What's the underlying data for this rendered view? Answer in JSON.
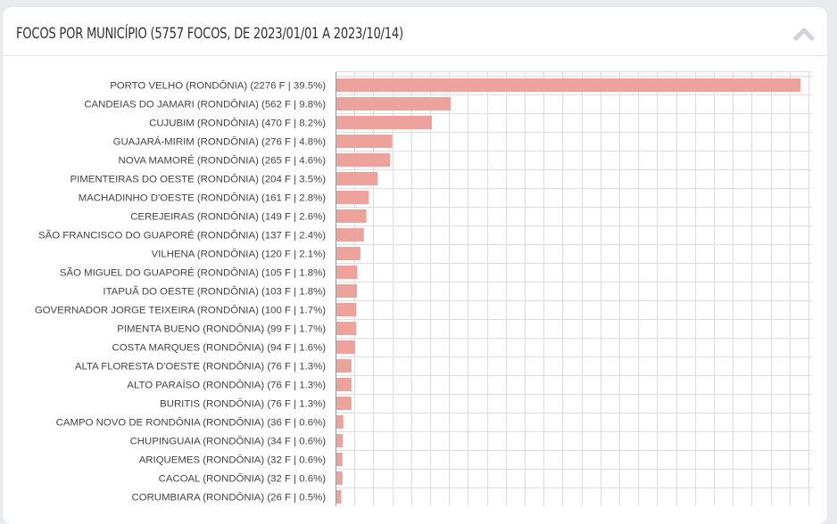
{
  "panel": {
    "title": "FOCOS POR MUNICÍPIO (5757 FOCOS, DE 2023/01/01 A 2023/10/14)",
    "collapse_icon": "chevron-up-icon"
  },
  "colors": {
    "bar": "#eda39c",
    "grid": "#dddddd",
    "axis": "#999999",
    "label": "#444444",
    "title": "#333333",
    "chevron": "#d0d4da"
  },
  "chart_data": {
    "type": "bar",
    "orientation": "horizontal",
    "grid": true,
    "categories": [
      "PORTO VELHO (RONDÔNIA) (2276 F | 39.5%)",
      "CANDEIAS DO JAMARI (RONDÔNIA) (562 F | 9.8%)",
      "CUJUBIM (RONDÔNIA) (470 F | 8.2%)",
      "GUAJARÁ-MIRIM (RONDÔNIA) (276 F | 4.8%)",
      "NOVA MAMORÉ (RONDÔNIA) (265 F | 4.6%)",
      "PIMENTEIRAS DO OESTE (RONDÔNIA) (204 F | 3.5%)",
      "MACHADINHO D'OESTE (RONDÔNIA) (161 F | 2.8%)",
      "CEREJEIRAS (RONDÔNIA) (149 F | 2.6%)",
      "SÃO FRANCISCO DO GUAPORÉ (RONDÔNIA) (137 F | 2.4%)",
      "VILHENA (RONDÔNIA) (120 F | 2.1%)",
      "SÃO MIGUEL DO GUAPORÉ (RONDÔNIA) (105 F | 1.8%)",
      "ITAPUÃ DO OESTE (RONDÔNIA) (103 F | 1.8%)",
      "GOVERNADOR JORGE TEIXEIRA (RONDÔNIA) (100 F | 1.7%)",
      "PIMENTA BUENO (RONDÔNIA) (99 F | 1.7%)",
      "COSTA MARQUES (RONDÔNIA) (94 F | 1.6%)",
      "ALTA FLORESTA D'OESTE (RONDÔNIA) (76 F | 1.3%)",
      "ALTO PARAÍSO (RONDÔNIA) (76 F | 1.3%)",
      "BURITIS (RONDÔNIA) (76 F | 1.3%)",
      "CAMPO NOVO DE RONDÔNIA (RONDÔNIA) (36 F | 0.6%)",
      "CHUPINGUAIA (RONDÔNIA) (34 F | 0.6%)",
      "ARIQUEMES (RONDÔNIA) (32 F | 0.6%)",
      "CACOAL (RONDÔNIA) (32 F | 0.6%)",
      "CORUMBIARA (RONDÔNIA) (26 F | 0.5%)"
    ],
    "values": [
      2276,
      562,
      470,
      276,
      265,
      204,
      161,
      149,
      137,
      120,
      105,
      103,
      100,
      99,
      94,
      76,
      76,
      76,
      36,
      34,
      32,
      32,
      26
    ],
    "xlim": [
      0,
      2300
    ]
  }
}
